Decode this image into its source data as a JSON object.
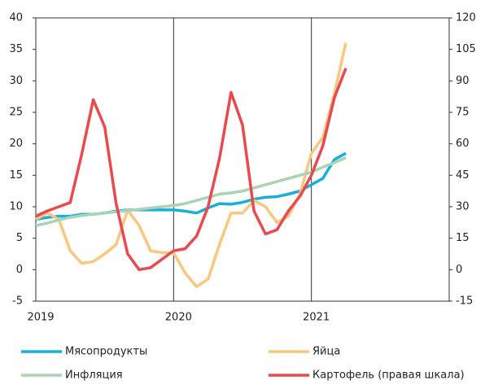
{
  "chart_data": {
    "type": "line",
    "x": [
      2019.0,
      2019.083,
      2019.167,
      2019.25,
      2019.333,
      2019.417,
      2019.5,
      2019.583,
      2019.667,
      2019.75,
      2019.833,
      2019.917,
      2020.0,
      2020.083,
      2020.167,
      2020.25,
      2020.333,
      2020.417,
      2020.5,
      2020.583,
      2020.667,
      2020.75,
      2020.833,
      2020.917,
      2021.0,
      2021.083,
      2021.167,
      2021.25
    ],
    "series": [
      {
        "name": "Мясопродукты",
        "color": "#1aafd9",
        "values": [
          8,
          8.3,
          8.5,
          8.5,
          8.8,
          8.8,
          9,
          9.3,
          9.5,
          9.5,
          9.5,
          9.5,
          9.5,
          9.3,
          9,
          9.8,
          10.5,
          10.4,
          10.7,
          11.2,
          11.5,
          11.6,
          12,
          12.5,
          13.5,
          14.5,
          17.5,
          18.5
        ]
      },
      {
        "name": "Яйца",
        "color": "#f9c77f",
        "values": [
          8,
          9,
          8,
          3,
          1,
          1.3,
          2.5,
          4,
          9.5,
          7,
          3,
          2.7,
          2.7,
          -0.5,
          -2.7,
          -1.5,
          4,
          9,
          9,
          11,
          10,
          7.5,
          8.5,
          12,
          18.5,
          21,
          28,
          36
        ]
      },
      {
        "name": "Инфляция",
        "color": "#a9d4b4",
        "values": [
          7,
          7.4,
          7.9,
          8.3,
          8.6,
          8.8,
          9,
          9.2,
          9.4,
          9.6,
          9.8,
          10,
          10.2,
          10.5,
          11,
          11.5,
          12,
          12.2,
          12.5,
          13,
          13.5,
          14,
          14.5,
          15,
          15.5,
          16.3,
          17,
          17.8
        ]
      },
      {
        "name": "Картофель (правая шкала)",
        "color": "#e94a50",
        "axis": "y2",
        "values": [
          25.5,
          28,
          30,
          32,
          55,
          81,
          68,
          31.5,
          7.5,
          0,
          1,
          5,
          9,
          10,
          16,
          30,
          53,
          84.5,
          69,
          28,
          17,
          19,
          28,
          35,
          45,
          59,
          82,
          96
        ]
      }
    ],
    "xlim": [
      2019,
      2022
    ],
    "xticks": [
      2019,
      2020,
      2021
    ],
    "ylim": [
      -5,
      40
    ],
    "yticks": [
      -5,
      0,
      5,
      10,
      15,
      20,
      25,
      30,
      35,
      40
    ],
    "y2lim": [
      -15,
      120
    ],
    "y2ticks": [
      -15,
      0,
      15,
      30,
      45,
      60,
      75,
      90,
      105,
      120
    ],
    "grid": true
  }
}
